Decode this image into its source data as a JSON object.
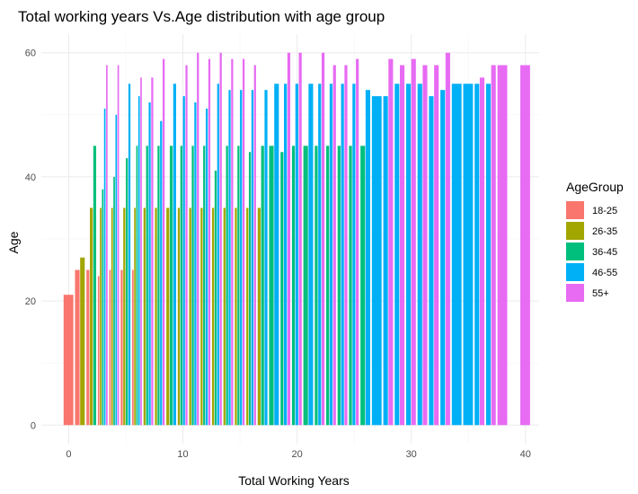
{
  "chart_data": {
    "type": "bar",
    "title": "Total working years Vs.Age distribution with age group",
    "xlabel": "Total Working Years",
    "ylabel": "Age",
    "xlim": [
      -2.4,
      41.2
    ],
    "ylim": [
      -3,
      63
    ],
    "x_ticks": [
      0,
      10,
      20,
      30,
      40
    ],
    "y_ticks": [
      0,
      20,
      40,
      60
    ],
    "grid": true,
    "legend": {
      "title": "AgeGroup",
      "placement": "right",
      "entries": [
        {
          "name": "18-25",
          "color": "#F8766D"
        },
        {
          "name": "26-35",
          "color": "#A3A500"
        },
        {
          "name": "36-45",
          "color": "#00BF7D"
        },
        {
          "name": "46-55",
          "color": "#00B0F6"
        },
        {
          "name": "55+",
          "color": "#E76BF3"
        }
      ]
    },
    "x": [
      0,
      1,
      2,
      3,
      4,
      5,
      6,
      7,
      8,
      9,
      10,
      11,
      12,
      13,
      14,
      15,
      16,
      17,
      18,
      19,
      20,
      21,
      22,
      23,
      24,
      25,
      26,
      27,
      28,
      29,
      30,
      31,
      32,
      33,
      34,
      35,
      36,
      37,
      38,
      40
    ],
    "series": [
      {
        "name": "18-25",
        "values": [
          21,
          25,
          25,
          24,
          25,
          25,
          25,
          null,
          null,
          null,
          null,
          null,
          null,
          null,
          null,
          null,
          null,
          null,
          null,
          null,
          null,
          null,
          null,
          null,
          null,
          null,
          null,
          null,
          null,
          null,
          null,
          null,
          null,
          null,
          null,
          null,
          null,
          null,
          null,
          null
        ]
      },
      {
        "name": "26-35",
        "values": [
          null,
          27,
          35,
          35,
          35,
          35,
          35,
          35,
          35,
          35,
          35,
          35,
          35,
          35,
          35,
          35,
          35,
          35,
          null,
          null,
          null,
          null,
          null,
          null,
          null,
          null,
          null,
          null,
          null,
          null,
          null,
          null,
          null,
          null,
          null,
          null,
          null,
          null,
          null,
          null
        ]
      },
      {
        "name": "36-45",
        "values": [
          null,
          null,
          45,
          38,
          40,
          43,
          45,
          45,
          45,
          45,
          45,
          45,
          45,
          41,
          45,
          45,
          44,
          45,
          45,
          44,
          45,
          45,
          45,
          45,
          45,
          45,
          45,
          null,
          null,
          null,
          null,
          null,
          null,
          null,
          null,
          null,
          null,
          null,
          null,
          null
        ]
      },
      {
        "name": "46-55",
        "values": [
          null,
          null,
          null,
          51,
          50,
          55,
          53,
          52,
          49,
          55,
          53,
          52,
          51,
          55,
          54,
          54,
          54,
          54,
          55,
          55,
          55,
          55,
          55,
          55,
          55,
          55,
          54,
          53,
          53,
          55,
          55,
          55,
          53,
          54,
          55,
          55,
          55,
          55,
          null,
          null
        ]
      },
      {
        "name": "55+",
        "values": [
          null,
          null,
          null,
          58,
          58,
          null,
          56,
          56,
          59,
          null,
          58,
          60,
          59,
          60,
          59,
          59,
          58,
          null,
          null,
          60,
          60,
          null,
          60,
          58,
          58,
          59,
          null,
          null,
          59,
          58,
          59,
          58,
          58,
          60,
          null,
          null,
          56,
          58,
          58,
          58
        ]
      }
    ]
  }
}
